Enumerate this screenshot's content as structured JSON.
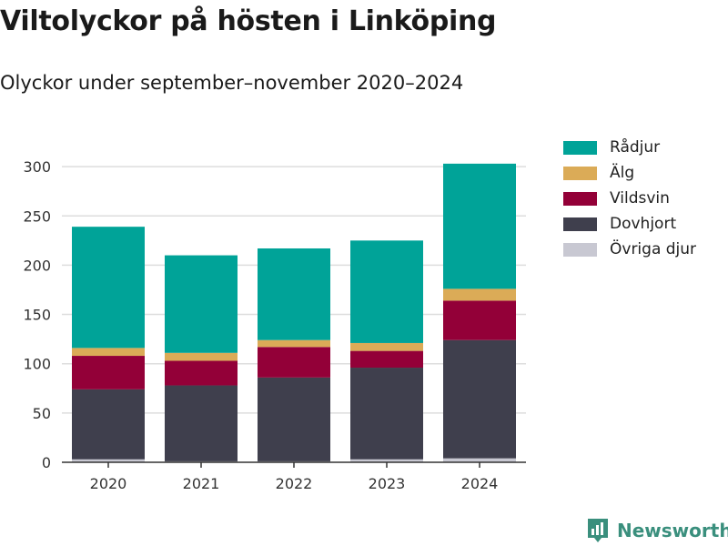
{
  "header": {
    "title": "Viltolyckor på hösten i Linköping",
    "subtitle": "Olyckor under september–november 2020–2024"
  },
  "brand": {
    "name": "Newsworthy",
    "icon": "newsworthy-logo-icon"
  },
  "colors": {
    "radjur": "#00a398",
    "alg": "#dbab57",
    "vildsvin": "#930038",
    "dovhjort": "#3f3f4d",
    "ovriga": "#c8c8d2",
    "grid": "#dddddd",
    "axis": "#333333"
  },
  "chart_data": {
    "type": "bar",
    "stacked": true,
    "title": "Viltolyckor på hösten i Linköping",
    "subtitle": "Olyckor under september–november 2020–2024",
    "xlabel": "",
    "ylabel": "",
    "categories": [
      "2020",
      "2021",
      "2022",
      "2023",
      "2024"
    ],
    "yticks": [
      0,
      50,
      100,
      150,
      200,
      250,
      300
    ],
    "ylim": [
      0,
      330
    ],
    "grid": true,
    "legend_position": "right",
    "series": [
      {
        "name": "Övriga djur",
        "color_key": "ovriga",
        "values": [
          3,
          1,
          1,
          3,
          4
        ]
      },
      {
        "name": "Dovhjort",
        "color_key": "dovhjort",
        "values": [
          71,
          77,
          85,
          93,
          120
        ]
      },
      {
        "name": "Vildsvin",
        "color_key": "vildsvin",
        "values": [
          34,
          25,
          31,
          17,
          40
        ]
      },
      {
        "name": "Älg",
        "color_key": "alg",
        "values": [
          8,
          8,
          7,
          8,
          12
        ]
      },
      {
        "name": "Rådjur",
        "color_key": "radjur",
        "values": [
          123,
          99,
          93,
          104,
          127
        ]
      }
    ]
  }
}
